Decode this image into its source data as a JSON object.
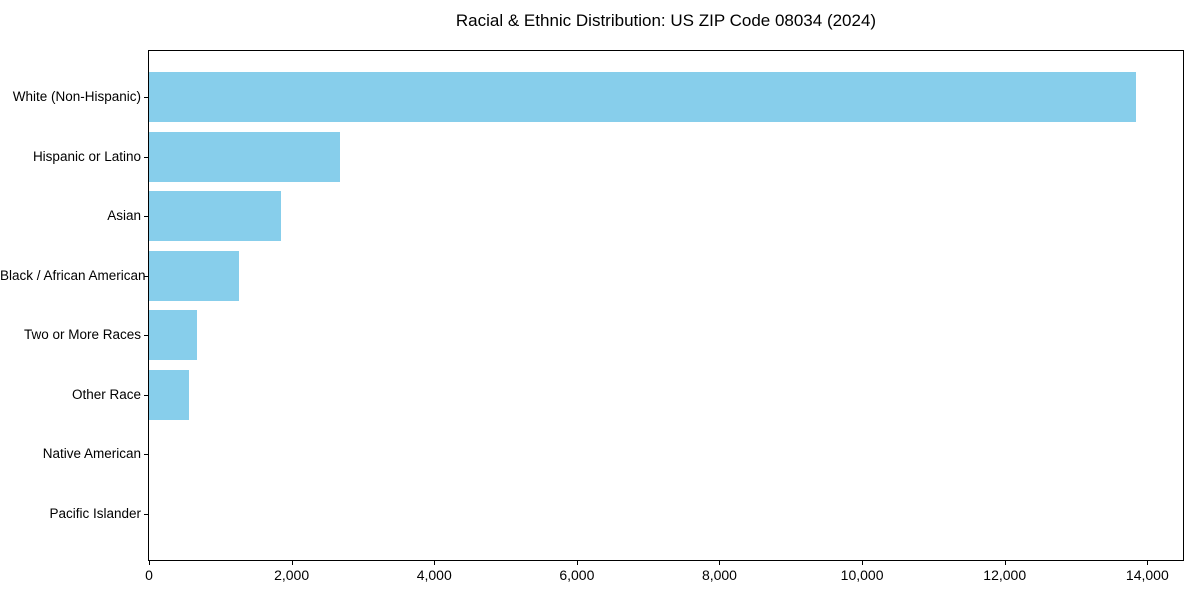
{
  "figure": {
    "title": "Racial & Ethnic Distribution: US ZIP Code 08034 (2024)"
  },
  "chart_data": {
    "type": "bar",
    "orientation": "horizontal",
    "title": "Racial & Ethnic Distribution: US ZIP Code 08034 (2024)",
    "categories": [
      "White (Non-Hispanic)",
      "Hispanic or Latino",
      "Asian",
      "Black / African American",
      "Two or More Races",
      "Other Race",
      "Native American",
      "Pacific Islander"
    ],
    "values": [
      13835,
      2680,
      1855,
      1265,
      675,
      565,
      0,
      0
    ],
    "xlabel": "",
    "ylabel": "",
    "xlim": [
      0,
      14500
    ],
    "xticks": [
      0,
      2000,
      4000,
      6000,
      8000,
      10000,
      12000,
      14000
    ],
    "xtick_labels": [
      "0",
      "2,000",
      "4,000",
      "6,000",
      "8,000",
      "10,000",
      "12,000",
      "14,000"
    ],
    "grid": false,
    "legend": null,
    "bar_color": "#87CEEB",
    "axis_color": "#000000",
    "text_color": "#000000",
    "background_color": "#FFFFFF"
  }
}
